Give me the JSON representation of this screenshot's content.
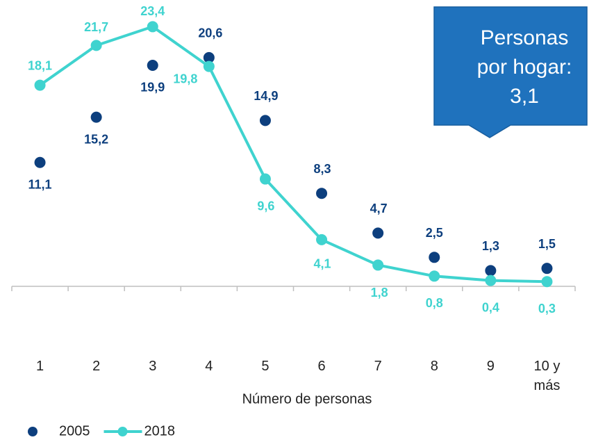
{
  "chart_data": {
    "type": "line",
    "categories": [
      "1",
      "2",
      "3",
      "4",
      "5",
      "6",
      "7",
      "8",
      "9",
      "10 y más"
    ],
    "series": [
      {
        "name": "2005",
        "type": "scatter",
        "color": "#0d3f7e",
        "values": [
          11.1,
          15.2,
          19.9,
          20.6,
          14.9,
          8.3,
          4.7,
          2.5,
          1.3,
          1.5
        ],
        "value_labels": [
          "11,1",
          "15,2",
          "19,9",
          "20,6",
          "14,9",
          "8,3",
          "4,7",
          "2,5",
          "1,3",
          "1,5"
        ]
      },
      {
        "name": "2018",
        "type": "line",
        "color": "#3fd3cf",
        "values": [
          18.1,
          21.7,
          23.4,
          19.8,
          9.6,
          4.1,
          1.8,
          0.8,
          0.4,
          0.3
        ],
        "value_labels": [
          "18,1",
          "21,7",
          "23,4",
          "19,8",
          "9,6",
          "4,1",
          "1,8",
          "0,8",
          "0,4",
          "0,3"
        ]
      }
    ],
    "ylim": [
      0,
      25
    ],
    "xlabel": "Número de personas",
    "annotation": "Personas por hogar: 3,1",
    "legend": "bottom-left"
  }
}
